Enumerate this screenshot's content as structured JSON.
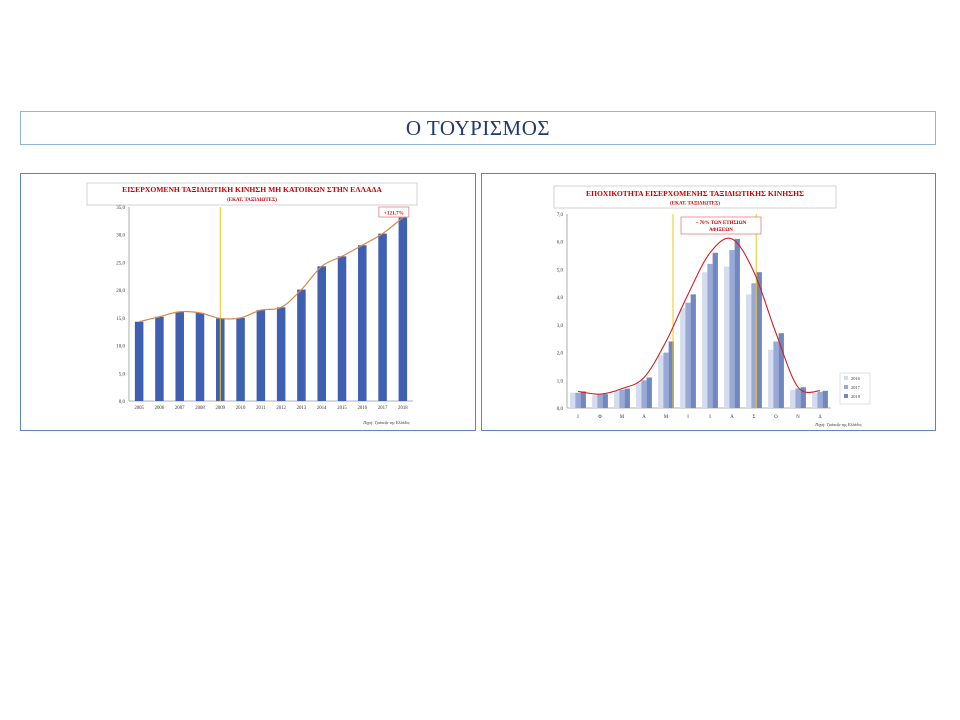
{
  "slide_title": "Ο ΤΟΥΡΙΣΜΟΣ",
  "colors": {
    "title": "#1f3a6e",
    "chart_title": "#cc0000",
    "bar": "#3f5fb0",
    "trend": "#d98a50",
    "marker": "#f0c419"
  },
  "chart_data": [
    {
      "type": "bar",
      "title": "ΕΙΣΕΡΧΟΜΕΝΗ ΤΑΞΙΔΙΩΤΙΚΗ ΚΙΝΗΣΗ ΜΗ ΚΑΤΟΙΚΩΝ ΣΤΗΝ ΕΛΛΑΔΑ",
      "subtitle": "(ΕΚΑΤ. ΤΑΞΙΔΙΩΤΕΣ)",
      "annotation": "+121,7%",
      "source": "Πηγή: Τράπεζα της Ελλάδος",
      "categories": [
        "2005",
        "2006",
        "2007",
        "2008",
        "2009",
        "2010",
        "2011",
        "2012",
        "2013",
        "2014",
        "2015",
        "2016",
        "2017",
        "2018"
      ],
      "values": [
        14.3,
        15.2,
        16.1,
        15.9,
        14.9,
        15.0,
        16.4,
        16.9,
        20.1,
        24.3,
        26.1,
        28.1,
        30.2,
        33.1
      ],
      "yticks": [
        "0,0",
        "5,0",
        "10,0",
        "15,0",
        "20,0",
        "25,0",
        "30,0",
        "35,0"
      ],
      "ylim": [
        0,
        35
      ],
      "marker_after": "2009",
      "trendline": true
    },
    {
      "type": "bar",
      "title": "ΕΠΟΧΙΚΟΤΗΤΑ ΕΙΣΕΡΧΟΜΕΝΗΣ ΤΑΞΙΔΙΩΤΙΚΗΣ ΚΙΝΗΣΗΣ",
      "subtitle": "(ΕΚΑΤ. ΤΑΞΙΔΙΩΤΕΣ)",
      "annotation": [
        "~ 70% ΤΩΝ ΕΤΗΣΙΩΝ",
        "ΑΦΙΞΕΩΝ"
      ],
      "source": "Πηγή: Τράπεζα της Ελλάδος",
      "categories": [
        "Ι",
        "Φ",
        "Μ",
        "Α",
        "Μ",
        "Ι",
        "Ι",
        "Α",
        "Σ",
        "Ο",
        "Ν",
        "Δ"
      ],
      "series": [
        {
          "name": "2016",
          "values": [
            0.55,
            0.45,
            0.6,
            0.9,
            1.9,
            3.6,
            4.9,
            5.1,
            4.1,
            2.1,
            0.65,
            0.55
          ]
        },
        {
          "name": "2017",
          "values": [
            0.55,
            0.48,
            0.65,
            1.0,
            2.0,
            3.8,
            5.2,
            5.7,
            4.5,
            2.4,
            0.7,
            0.58
          ]
        },
        {
          "name": "2018",
          "values": [
            0.6,
            0.5,
            0.7,
            1.1,
            2.4,
            4.1,
            5.6,
            6.1,
            4.9,
            2.7,
            0.75,
            0.62
          ]
        }
      ],
      "yticks": [
        "0,0",
        "1,0",
        "2,0",
        "3,0",
        "4,0",
        "5,0",
        "6,0",
        "7,0"
      ],
      "ylim": [
        0,
        7
      ],
      "highlight_range": [
        "Μ",
        "Σ"
      ],
      "trend_series": "2018"
    }
  ]
}
